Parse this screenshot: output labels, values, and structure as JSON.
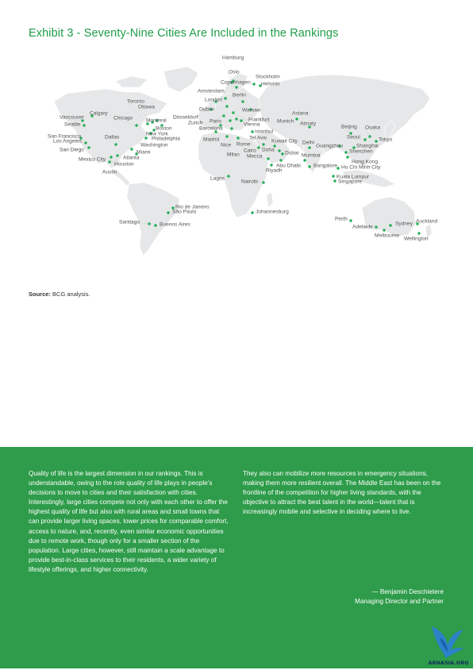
{
  "exhibit_title": "Exhibit 3 - Seventy-Nine Cities Are Included in the Rankings",
  "colors": {
    "accent_green": "#1f9d48",
    "panel_green": "#2e9c4a",
    "land": "#e6e7e8",
    "city_dot": "#1fae55"
  },
  "source": {
    "label": "Source:",
    "text": "BCG analysis."
  },
  "cities": [
    "Hamburg",
    "Oslo",
    "Stockholm",
    "Helsinki",
    "Copenhagen",
    "Amsterdam",
    "Berlin",
    "London",
    "Dublin",
    "Warsaw",
    "Düsseldorf",
    "Frankfurt",
    "Paris",
    "Zurich",
    "Vienna",
    "Munich",
    "Barcelona",
    "Astana",
    "Almaty",
    "Istanbul",
    "Madrid",
    "Tel Aviv",
    "Nice",
    "Rome",
    "Milan",
    "Cairo",
    "Doha",
    "Mecca",
    "Kuwait City",
    "Dubai",
    "Delhi",
    "Abu Dhabi",
    "Riyadh",
    "Mumbai",
    "Bangalore",
    "Nairobi",
    "Lagos",
    "Johannesburg",
    "Beijing",
    "Osaka",
    "Seoul",
    "Tokyo",
    "Shanghai",
    "Guangzhou",
    "Shenzhen",
    "Hong Kong",
    "Ho Chi Minh City",
    "Kuala Lumpur",
    "Singapore",
    "Perth",
    "Adelaide",
    "Melbourne",
    "Sydney",
    "Auckland",
    "Wellington",
    "Toronto",
    "Ottawa",
    "Montreal",
    "Boston",
    "New York",
    "Philadelphia",
    "Washington",
    "Chicago",
    "Calgary",
    "Vancouver",
    "Seattle",
    "San Francisco",
    "Los Angeles",
    "San Diego",
    "Dallas",
    "Atlanta",
    "Miami",
    "Houston",
    "Austin",
    "Mexico City",
    "Rio de Janeiro",
    "São Paulo",
    "Santiago",
    "Buenos Aires"
  ],
  "body_left": "Quality of life is the largest dimension in our rankings. This is understandable, owing to the role quality of life plays in people’s decisions to move to cities and their satisfaction with cities. Interestingly, large cities compete not only with each other to offer the highest quality of life but also with rural areas and small towns that can provide larger living spaces, lower prices for comparable comfort, access to nature, and, recently, even similar economic opportunities due to remote work, though only for a smaller section of the population. Large cities, however, still maintain a scale advantage to provide best-in-class services to their residents, a wider variety of lifestyle offerings, and higher connectivity.",
  "body_right": "They also can mobilize more resources in emergency situations, making them more resilient overall. The Middle East has been on the frontline of the competition for higher living standards, with the objective to attract the best talent in the world—talent that is increasingly mobile and selective in deciding where to live.",
  "attribution": {
    "name": "— Benjamin Deschietere",
    "role": "Managing Director and Partner"
  },
  "logo_text": "ARNASIA.ORG",
  "icons": [
    "world-map",
    "bird-logo-icon"
  ]
}
